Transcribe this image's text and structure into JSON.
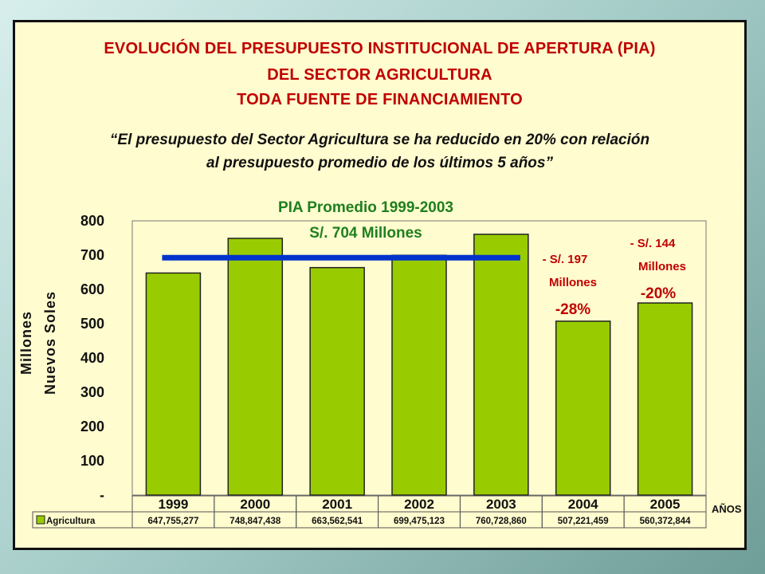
{
  "title": {
    "line1": "EVOLUCIÓN DEL PRESUPUESTO INSTITUCIONAL DE APERTURA  (PIA)",
    "line2": "DEL SECTOR AGRICULTURA",
    "line3": "TODA FUENTE DE FINANCIAMIENTO"
  },
  "quote": {
    "line1": "“El presupuesto del Sector Agricultura se ha reducido en 20% con relación",
    "line2": "al presupuesto promedio de los últimos 5 años”"
  },
  "average_label": {
    "line1": "PIA Promedio 1999-2003",
    "line2": "S/. 704 Millones"
  },
  "annotations": {
    "y2004_amount_1": "- S/. 197",
    "y2004_amount_2": "Millones",
    "y2004_pct": "-28%",
    "y2005_amount_1": "- S/. 144",
    "y2005_amount_2": "Millones",
    "y2005_pct": "-20%"
  },
  "colors": {
    "bar": "#99cc00",
    "average_line": "#0033cc",
    "title": "#c00000",
    "green_label": "#1f7f1f",
    "slide_bg": "#fffccf"
  },
  "chart_data": {
    "type": "bar",
    "categories": [
      "1999",
      "2000",
      "2001",
      "2002",
      "2003",
      "2004",
      "2005"
    ],
    "series": [
      {
        "name": "Agricultura",
        "values": [
          647.755277,
          748.847438,
          663.562541,
          699.475123,
          760.72886,
          507.221459,
          560.372844
        ]
      }
    ],
    "table_values": [
      "647,755,277",
      "748,847,438",
      "663,562,541",
      "699,475,123",
      "760,728,860",
      "507,221,459",
      "560,372,844"
    ],
    "reference_line": {
      "value": 704,
      "from_category": "1999",
      "to_category": "2003"
    },
    "ylabel_line1": "Millones",
    "ylabel_line2": "Nuevos Soles",
    "xlabel": "AÑOS",
    "yticks": [
      "-",
      "100",
      "200",
      "300",
      "400",
      "500",
      "600",
      "700",
      "800"
    ],
    "ylim": [
      0,
      800
    ],
    "grid": false,
    "legend": "data table below chart"
  }
}
